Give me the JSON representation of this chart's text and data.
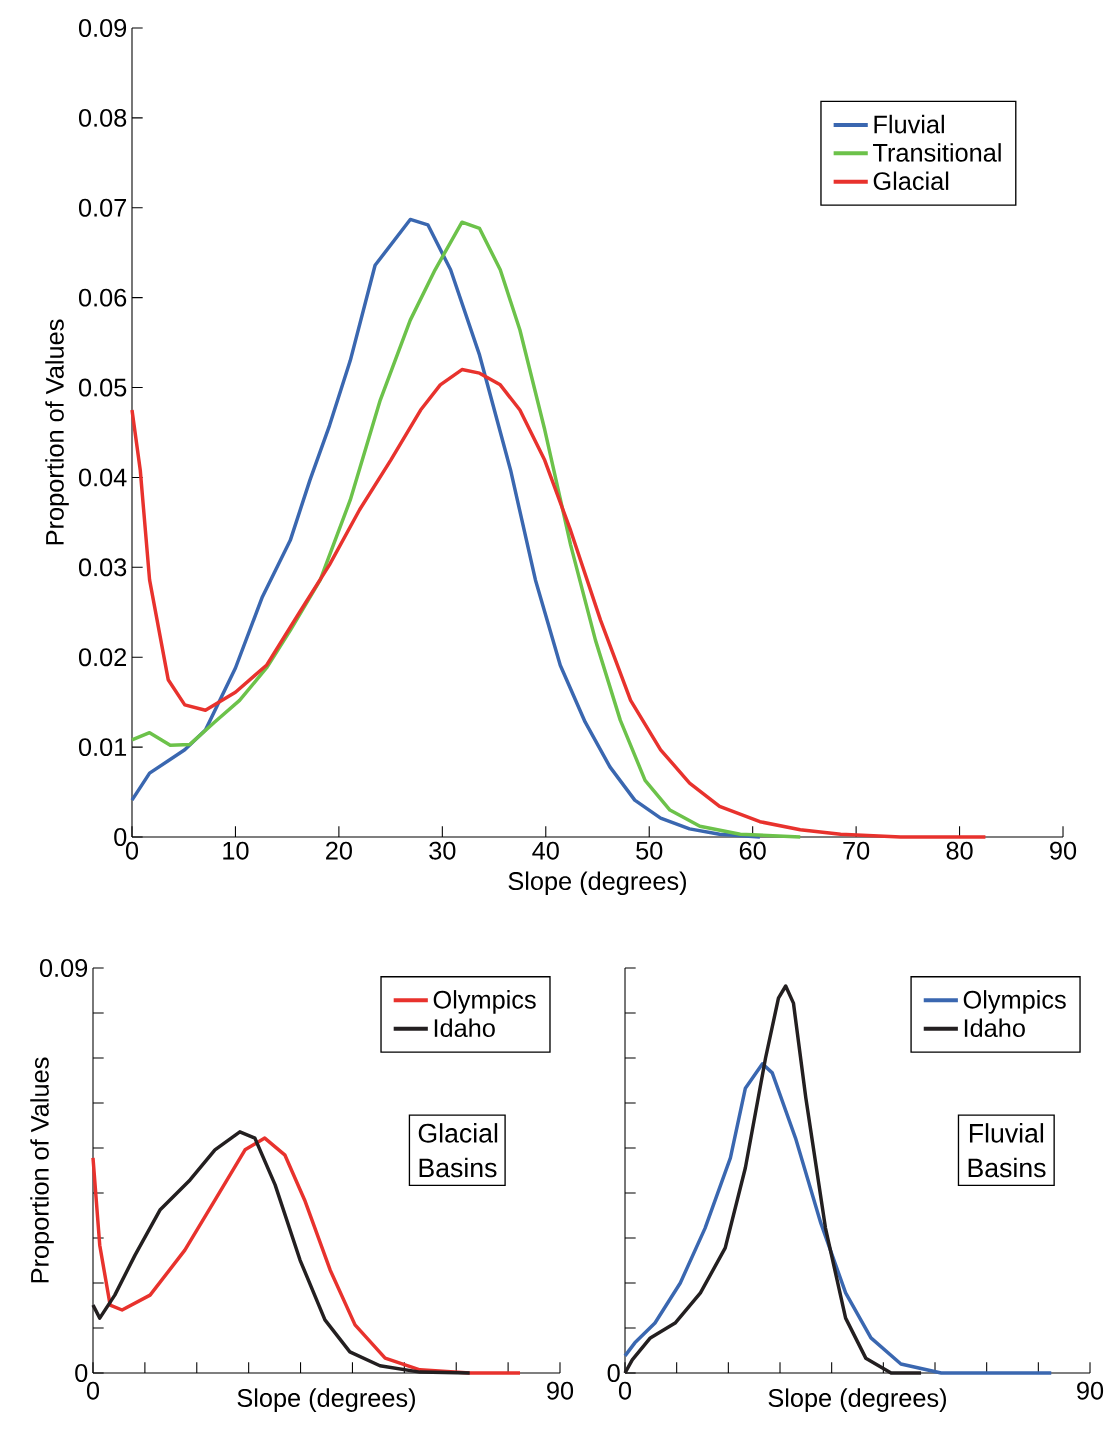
{
  "chart_data": [
    {
      "type": "line",
      "xlabel": "Slope (degrees)",
      "ylabel": "Proportion of Values",
      "xlim": [
        0,
        90
      ],
      "ylim": [
        0,
        0.09
      ],
      "xticks": [
        0,
        10,
        20,
        30,
        40,
        50,
        60,
        70,
        80,
        90
      ],
      "yticks": [
        0,
        0.01,
        0.02,
        0.03,
        0.04,
        0.05,
        0.06,
        0.07,
        0.08,
        0.09
      ],
      "legend": "top right",
      "line_style": "solid",
      "series": [
        {
          "name": "Fluvial",
          "color": "#3a67b0",
          "x": [
            0,
            1.7,
            5.1,
            7.1,
            10,
            12.6,
            15.3,
            17.2,
            19.1,
            21.1,
            23.5,
            26.9,
            28.6,
            30.8,
            33.6,
            36.6,
            39,
            41.4,
            43.8,
            46.2,
            48.6,
            51.1,
            53.9,
            56.8,
            60.7
          ],
          "values": [
            0.0041,
            0.0071,
            0.0097,
            0.0119,
            0.0188,
            0.0267,
            0.033,
            0.0397,
            0.0458,
            0.053,
            0.0636,
            0.0687,
            0.0681,
            0.0631,
            0.0536,
            0.0408,
            0.0286,
            0.0191,
            0.0128,
            0.0078,
            0.0041,
            0.0021,
            0.0009,
            0.0003,
            0
          ]
        },
        {
          "name": "Transitional",
          "color": "#6cc24a",
          "x": [
            0,
            1.7,
            3.7,
            5.6,
            8,
            10.4,
            13,
            15.3,
            18.2,
            21.1,
            24,
            26.9,
            29.3,
            31.9,
            33.6,
            35.6,
            37.5,
            39.9,
            42.4,
            44.8,
            47.2,
            49.6,
            52,
            54.9,
            58.8,
            64.6
          ],
          "values": [
            0.0108,
            0.0116,
            0.0102,
            0.0103,
            0.0128,
            0.0152,
            0.0188,
            0.023,
            0.0286,
            0.0375,
            0.0486,
            0.0575,
            0.0631,
            0.0684,
            0.0677,
            0.0631,
            0.0564,
            0.0453,
            0.0325,
            0.0219,
            0.013,
            0.0063,
            0.003,
            0.0012,
            0.0003,
            0
          ]
        },
        {
          "name": "Glacial",
          "color": "#e8322d",
          "x": [
            0,
            0.8,
            1.7,
            3.5,
            5.1,
            7.1,
            10,
            13,
            16.2,
            19.1,
            22,
            25,
            27.9,
            29.8,
            31.9,
            33.6,
            35.6,
            37.5,
            39.9,
            42.4,
            45.3,
            48.2,
            51.1,
            53.9,
            56.8,
            60.7,
            64.6,
            68.5,
            74.3,
            82.5
          ],
          "values": [
            0.0475,
            0.0408,
            0.0286,
            0.0175,
            0.0147,
            0.0141,
            0.0161,
            0.0191,
            0.025,
            0.0303,
            0.0364,
            0.0419,
            0.0475,
            0.0503,
            0.052,
            0.0516,
            0.0503,
            0.0475,
            0.0419,
            0.0341,
            0.0241,
            0.0152,
            0.0097,
            0.006,
            0.0034,
            0.0017,
            0.0008,
            0.0003,
            0,
            0
          ]
        }
      ]
    },
    {
      "type": "line",
      "xlabel": "Slope (degrees)",
      "ylabel": "Proportion of Values",
      "xlim": [
        0,
        90
      ],
      "ylim": [
        0,
        0.09
      ],
      "xticks": [
        0,
        {
          "value": 10,
          "label": null
        },
        {
          "value": 20,
          "label": null
        },
        {
          "value": 30,
          "label": null
        },
        {
          "value": 40,
          "label": null
        },
        {
          "value": 50,
          "label": null
        },
        {
          "value": 60,
          "label": null
        },
        {
          "value": 70,
          "label": null
        },
        {
          "value": 80,
          "label": null
        },
        90
      ],
      "yticks": [
        0,
        {
          "value": 0.01,
          "label": null
        },
        {
          "value": 0.02,
          "label": null
        },
        {
          "value": 0.03,
          "label": null
        },
        {
          "value": 0.04,
          "label": null
        },
        {
          "value": 0.05,
          "label": null
        },
        {
          "value": 0.06,
          "label": null
        },
        {
          "value": 0.07,
          "label": null
        },
        {
          "value": 0.08,
          "label": null
        },
        0.09
      ],
      "legend": "top right",
      "line_style": "solid",
      "annotations": [
        "Glacial Basins"
      ],
      "series": [
        {
          "name": "Olympics",
          "color": "#e8322d",
          "x": [
            0,
            1.3,
            3.3,
            5.6,
            11,
            17.7,
            23.5,
            29.3,
            33.1,
            37,
            40.8,
            45.7,
            50.5,
            56.3,
            63,
            72.6,
            82.3
          ],
          "values": [
            0.0478,
            0.0284,
            0.0151,
            0.014,
            0.0173,
            0.0273,
            0.0384,
            0.0496,
            0.0522,
            0.0484,
            0.0384,
            0.0229,
            0.0107,
            0.0033,
            0.0007,
            0,
            0
          ]
        },
        {
          "name": "Idaho",
          "color": "#231f20",
          "x": [
            0,
            1.3,
            4.2,
            8.1,
            12.9,
            18.7,
            23.5,
            28.3,
            31.2,
            35.1,
            39.9,
            44.7,
            49.5,
            55.3,
            63,
            72.6
          ],
          "values": [
            0.0151,
            0.0122,
            0.0173,
            0.0262,
            0.0362,
            0.0429,
            0.0496,
            0.0536,
            0.0522,
            0.0418,
            0.0251,
            0.0118,
            0.0047,
            0.0016,
            0.0002,
            0
          ]
        }
      ]
    },
    {
      "type": "line",
      "xlabel": "Slope (degrees)",
      "xlim": [
        0,
        90
      ],
      "ylim": [
        0,
        0.09
      ],
      "xticks": [
        0,
        {
          "value": 10,
          "label": null
        },
        {
          "value": 20,
          "label": null
        },
        {
          "value": 30,
          "label": null
        },
        {
          "value": 40,
          "label": null
        },
        {
          "value": 50,
          "label": null
        },
        {
          "value": 60,
          "label": null
        },
        {
          "value": 70,
          "label": null
        },
        {
          "value": 80,
          "label": null
        },
        90
      ],
      "yticks": [
        0,
        {
          "value": 0.01,
          "label": null
        },
        {
          "value": 0.02,
          "label": null
        },
        {
          "value": 0.03,
          "label": null
        },
        {
          "value": 0.04,
          "label": null
        },
        {
          "value": 0.05,
          "label": null
        },
        {
          "value": 0.06,
          "label": null
        },
        {
          "value": 0.07,
          "label": null
        },
        {
          "value": 0.08,
          "label": null
        },
        {
          "value": 0.09,
          "label": null
        }
      ],
      "tick_labels": "x",
      "legend": "top right",
      "line_style": "solid",
      "annotations": [
        "Fluvial Basins",
        "0"
      ],
      "series": [
        {
          "name": "Olympics",
          "color": "#3a67b0",
          "x": [
            0,
            1.9,
            5.8,
            10.7,
            15.5,
            20.4,
            23.3,
            26.6,
            28.5,
            33,
            37.9,
            42.7,
            47.6,
            53.4,
            61.2,
            82.5
          ],
          "values": [
            0.0038,
            0.0067,
            0.0111,
            0.02,
            0.0322,
            0.0478,
            0.0633,
            0.0687,
            0.0667,
            0.0522,
            0.0333,
            0.0178,
            0.0078,
            0.002,
            0,
            0
          ]
        },
        {
          "name": "Idaho",
          "color": "#231f20",
          "x": [
            0,
            1.4,
            4.9,
            9.7,
            14.6,
            19.4,
            23.3,
            27.2,
            29.7,
            31.1,
            32.6,
            35,
            38.8,
            42.7,
            46.6,
            51.5,
            57.3
          ],
          "values": [
            0,
            0.0029,
            0.0078,
            0.0111,
            0.0178,
            0.0278,
            0.0456,
            0.07,
            0.0833,
            0.086,
            0.0822,
            0.0611,
            0.0322,
            0.0122,
            0.0033,
            0,
            0
          ]
        }
      ]
    }
  ]
}
